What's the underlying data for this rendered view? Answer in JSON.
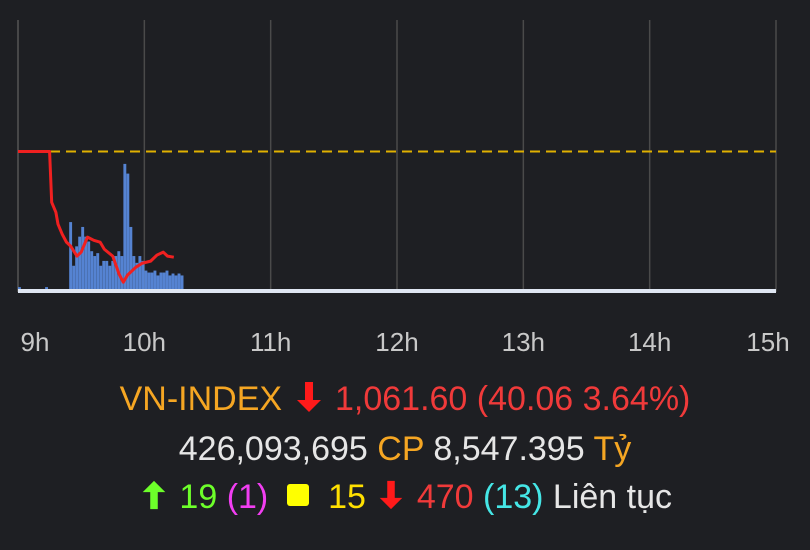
{
  "chart_data": {
    "type": "line",
    "title": "",
    "xlabel": "",
    "ylabel": "",
    "x_ticks": [
      "9h",
      "10h",
      "11h",
      "12h",
      "13h",
      "14h",
      "15h"
    ],
    "xlim": [
      "09:00",
      "15:00"
    ],
    "ylim": [
      1048.4,
      1151.5
    ],
    "grid": "vertical",
    "reference_line": {
      "value": 1101.66,
      "style": "dashed",
      "color": "#e0b000"
    },
    "series": [
      {
        "type": "line",
        "color": "#f02020",
        "x": [
          "09:00",
          "09:15",
          "09:16",
          "09:18",
          "09:19",
          "09:21",
          "09:23",
          "09:25",
          "09:28",
          "09:30",
          "09:33",
          "09:36",
          "09:39",
          "09:41",
          "09:45",
          "09:48",
          "09:50",
          "09:52",
          "09:56",
          "09:59",
          "10:03",
          "10:06",
          "10:09",
          "10:11",
          "10:14"
        ],
        "y": [
          1101.66,
          1101.66,
          1082.4,
          1078.6,
          1074.1,
          1070.3,
          1067.3,
          1065.8,
          1062.0,
          1063.5,
          1069.2,
          1068.0,
          1067.3,
          1064.6,
          1062.0,
          1055.2,
          1052.1,
          1054.8,
          1057.8,
          1059.3,
          1060.1,
          1062.4,
          1063.5,
          1062.0,
          1061.6
        ]
      },
      {
        "type": "bar",
        "color": "#5b8ee6",
        "start": "09:00",
        "step_minutes": 1.43,
        "values": [
          3,
          0,
          0,
          0,
          0,
          0,
          0,
          0,
          0,
          3,
          0,
          0,
          0,
          0,
          0,
          0,
          0,
          70,
          25,
          45,
          55,
          65,
          55,
          50,
          40,
          35,
          38,
          25,
          30,
          30,
          25,
          30,
          35,
          40,
          35,
          130,
          120,
          65,
          35,
          28,
          35,
          30,
          20,
          18,
          18,
          20,
          15,
          18,
          18,
          20,
          15,
          17,
          15,
          17,
          15
        ]
      }
    ]
  },
  "summary": {
    "index_name": "VN-INDEX",
    "direction_icon": "arrow-down-icon",
    "index_value": "1,061.60",
    "change": "(40.06 3.64%)",
    "volume": "426,093,695",
    "volume_unit": "CP",
    "value": "8,547.395",
    "value_unit": "Tỷ",
    "advancers": "19",
    "ceiling": "(1)",
    "unchanged": "15",
    "decliners": "470",
    "floor": "(13)",
    "status": "Liên tục"
  },
  "colors": {
    "background": "#1e1f23",
    "up": "#6dff2a",
    "down": "#f03a3a",
    "ref": "#ffe000",
    "ceiling": "#f23ef2",
    "floor": "#45e6e6",
    "label": "#f5a623"
  }
}
